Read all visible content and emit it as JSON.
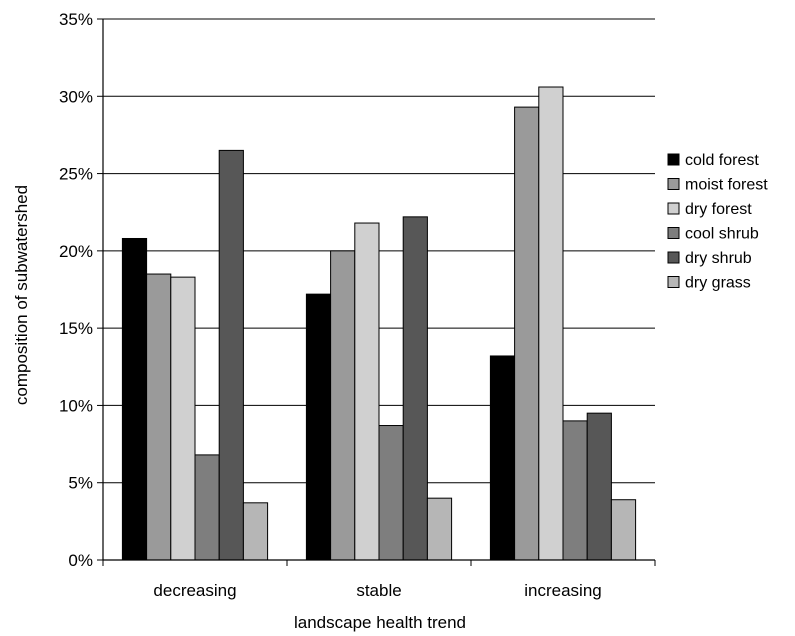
{
  "chart_data": {
    "type": "bar",
    "title": "",
    "xlabel": "landscape health trend",
    "ylabel": "composition of subwatershed",
    "categories": [
      "decreasing",
      "stable",
      "increasing"
    ],
    "ylim": [
      0,
      35
    ],
    "yticks": [
      0,
      5,
      10,
      15,
      20,
      25,
      30,
      35
    ],
    "ytick_suffix": "%",
    "grid": "horizontal",
    "legend_position": "right",
    "series": [
      {
        "name": "cold forest",
        "color": "#000000",
        "values": [
          20.8,
          17.2,
          13.2
        ]
      },
      {
        "name": "moist forest",
        "color": "#9a9a9a",
        "values": [
          18.5,
          20.0,
          29.3
        ]
      },
      {
        "name": "dry forest",
        "color": "#d0d0d0",
        "values": [
          18.3,
          21.8,
          30.6
        ]
      },
      {
        "name": "cool shrub",
        "color": "#7e7e7e",
        "values": [
          6.8,
          8.7,
          9.0
        ]
      },
      {
        "name": "dry shrub",
        "color": "#575757",
        "values": [
          26.5,
          22.2,
          9.5
        ]
      },
      {
        "name": "dry grass",
        "color": "#b6b6b6",
        "values": [
          3.7,
          4.0,
          3.9
        ]
      }
    ]
  }
}
